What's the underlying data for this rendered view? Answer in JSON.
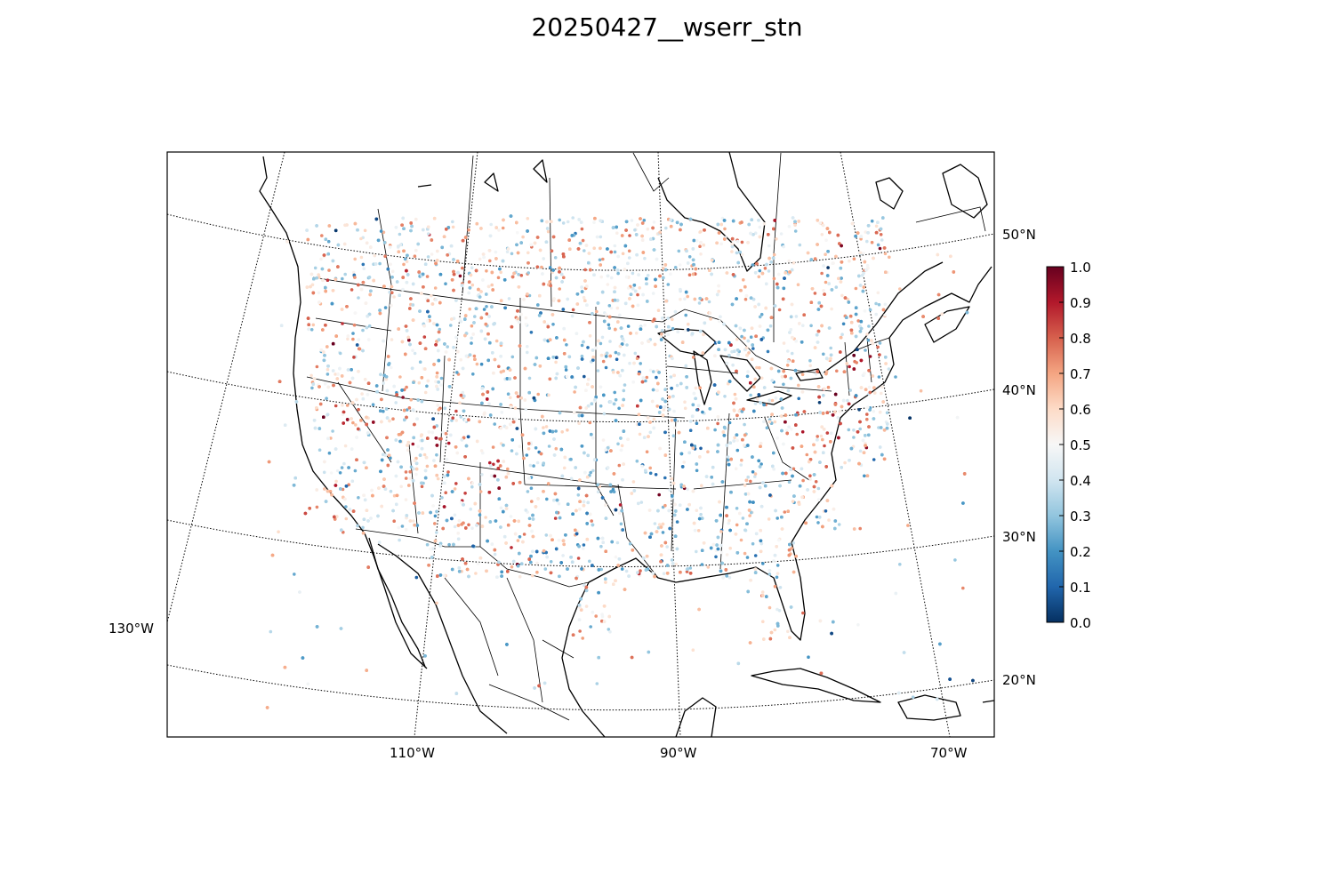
{
  "title": "20250427__wserr_stn",
  "lat_labels": [
    "50°N",
    "40°N",
    "30°N",
    "20°N"
  ],
  "lon_labels": [
    "130°W",
    "110°W",
    "90°W",
    "70°W"
  ],
  "colorbar": {
    "ticks": [
      "0.0",
      "0.1",
      "0.2",
      "0.3",
      "0.4",
      "0.5",
      "0.6",
      "0.7",
      "0.8",
      "0.9",
      "1.0"
    ],
    "range": [
      0.0,
      1.0
    ],
    "colormap": "RdBu_r",
    "stops": [
      "#053061",
      "#2166ac",
      "#4393c3",
      "#92c5de",
      "#d1e5f0",
      "#f7f7f7",
      "#fddbc7",
      "#f4a582",
      "#d6604d",
      "#b2182b",
      "#67001f"
    ]
  },
  "map": {
    "projection": "lambert-conformal",
    "extent_lon": [
      -133,
      -62
    ],
    "extent_lat": [
      16,
      56
    ],
    "meridians_deg": [
      -130,
      -110,
      -90,
      -70
    ],
    "parallels_deg": [
      20,
      30,
      40,
      50
    ],
    "variable": "wserr_stn",
    "marker": "station dots"
  }
}
